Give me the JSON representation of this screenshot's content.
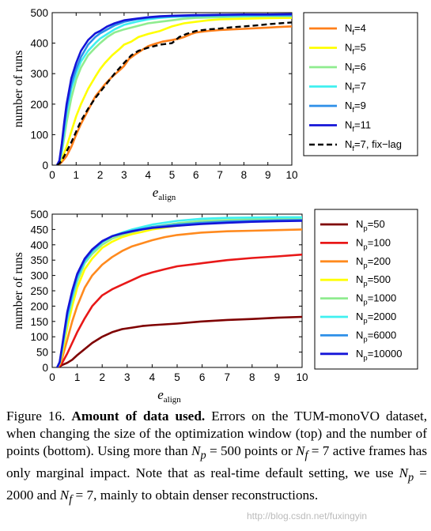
{
  "chart_data": [
    {
      "type": "line",
      "ylabel": "number of runs",
      "xlabel_main": "e",
      "xlabel_sub": "align",
      "xlim": [
        0,
        10
      ],
      "ylim": [
        0,
        500
      ],
      "xticks": [
        0,
        1,
        2,
        3,
        4,
        5,
        6,
        7,
        8,
        9,
        10
      ],
      "yticks": [
        0,
        100,
        200,
        300,
        400,
        500
      ],
      "legend_position": "right",
      "series": [
        {
          "label_main": "N",
          "label_sub": "f",
          "label_rest": "=4",
          "color": "#ff7f1a",
          "dashed": false,
          "x": [
            0.2,
            0.3,
            0.4,
            0.5,
            0.6,
            0.8,
            1.0,
            1.2,
            1.5,
            1.8,
            2.0,
            2.2,
            2.5,
            2.8,
            3.0,
            3.2,
            3.5,
            3.8,
            4.0,
            4.3,
            4.6,
            5.0,
            5.3,
            5.5,
            5.8,
            6.0,
            6.5,
            7.0,
            7.5,
            8.0,
            8.5,
            9.0,
            9.5,
            10.0
          ],
          "y": [
            0,
            3,
            10,
            20,
            30,
            60,
            100,
            135,
            180,
            225,
            245,
            265,
            290,
            310,
            325,
            348,
            365,
            380,
            390,
            398,
            405,
            410,
            415,
            420,
            430,
            435,
            440,
            443,
            445,
            447,
            449,
            451,
            453,
            455
          ]
        },
        {
          "label_main": "N",
          "label_sub": "f",
          "label_rest": "=5",
          "color": "#ffff00",
          "dashed": false,
          "x": [
            0.2,
            0.3,
            0.4,
            0.5,
            0.6,
            0.8,
            1.0,
            1.2,
            1.5,
            1.8,
            2.0,
            2.2,
            2.5,
            2.8,
            3.0,
            3.3,
            3.6,
            4.0,
            4.5,
            5.0,
            5.5,
            6.0,
            6.5,
            7.0,
            8.0,
            9.0,
            10.0
          ],
          "y": [
            0,
            5,
            20,
            40,
            60,
            110,
            160,
            200,
            250,
            290,
            315,
            335,
            360,
            380,
            395,
            405,
            420,
            430,
            440,
            455,
            465,
            470,
            475,
            478,
            480,
            482,
            483
          ]
        },
        {
          "label_main": "N",
          "label_sub": "f",
          "label_rest": "=6",
          "color": "#8fec8f",
          "dashed": false,
          "x": [
            0.2,
            0.3,
            0.4,
            0.5,
            0.6,
            0.8,
            1.0,
            1.2,
            1.5,
            1.8,
            2.0,
            2.3,
            2.6,
            3.0,
            3.5,
            4.0,
            4.5,
            5.0,
            5.5,
            6.0,
            7.0,
            8.0,
            9.0,
            10.0
          ],
          "y": [
            0,
            8,
            40,
            90,
            140,
            220,
            280,
            320,
            360,
            385,
            400,
            420,
            435,
            445,
            455,
            465,
            470,
            475,
            480,
            483,
            485,
            487,
            488,
            488
          ]
        },
        {
          "label_main": "N",
          "label_sub": "f",
          "label_rest": "=7",
          "color": "#3ff0f0",
          "dashed": false,
          "x": [
            0.2,
            0.3,
            0.4,
            0.5,
            0.6,
            0.8,
            1.0,
            1.2,
            1.5,
            1.8,
            2.0,
            2.3,
            2.6,
            3.0,
            3.5,
            4.0,
            4.5,
            5.0,
            6.0,
            7.0,
            8.0,
            9.0,
            10.0
          ],
          "y": [
            0,
            10,
            50,
            110,
            170,
            250,
            300,
            340,
            375,
            400,
            415,
            430,
            445,
            460,
            470,
            478,
            483,
            486,
            489,
            490,
            490,
            491,
            491
          ]
        },
        {
          "label_main": "N",
          "label_sub": "f",
          "label_rest": "=9",
          "color": "#2d8fe8",
          "dashed": false,
          "x": [
            0.2,
            0.3,
            0.4,
            0.5,
            0.6,
            0.8,
            1.0,
            1.2,
            1.5,
            1.8,
            2.0,
            2.3,
            2.6,
            3.0,
            3.5,
            4.0,
            4.5,
            5.0,
            6.0,
            7.0,
            8.0,
            9.0,
            10.0
          ],
          "y": [
            0,
            12,
            60,
            125,
            185,
            265,
            315,
            355,
            395,
            420,
            432,
            445,
            458,
            470,
            478,
            483,
            486,
            488,
            490,
            491,
            492,
            492,
            492
          ]
        },
        {
          "label_main": "N",
          "label_sub": "f",
          "label_rest": "=11",
          "color": "#1414d8",
          "dashed": false,
          "x": [
            0.2,
            0.3,
            0.4,
            0.5,
            0.6,
            0.8,
            1.0,
            1.2,
            1.5,
            1.8,
            2.0,
            2.3,
            2.6,
            3.0,
            3.5,
            4.0,
            4.5,
            5.0,
            6.0,
            7.0,
            8.0,
            9.0,
            10.0
          ],
          "y": [
            0,
            15,
            70,
            140,
            200,
            285,
            335,
            375,
            410,
            432,
            440,
            455,
            465,
            475,
            480,
            485,
            488,
            490,
            492,
            493,
            494,
            494,
            495
          ]
        },
        {
          "label_main": "N",
          "label_sub": "f",
          "label_rest": "=7, fix−lag",
          "color": "#000000",
          "dashed": true,
          "x": [
            0.2,
            0.3,
            0.4,
            0.5,
            0.6,
            0.8,
            1.0,
            1.2,
            1.5,
            1.8,
            2.0,
            2.3,
            2.6,
            3.0,
            3.3,
            3.6,
            4.0,
            4.5,
            5.0,
            5.3,
            5.6,
            6.0,
            6.5,
            7.0,
            7.5,
            8.0,
            8.5,
            9.0,
            9.5,
            10.0
          ],
          "y": [
            0,
            5,
            15,
            30,
            45,
            75,
            110,
            145,
            185,
            220,
            240,
            270,
            300,
            335,
            360,
            375,
            385,
            395,
            400,
            420,
            430,
            440,
            445,
            448,
            452,
            455,
            458,
            462,
            465,
            468
          ]
        }
      ]
    },
    {
      "type": "line",
      "ylabel": "number of runs",
      "xlabel_main": "e",
      "xlabel_sub": "align",
      "xlim": [
        0,
        10
      ],
      "ylim": [
        0,
        500
      ],
      "xticks": [
        0,
        1,
        2,
        3,
        4,
        5,
        6,
        7,
        8,
        9,
        10
      ],
      "yticks": [
        0,
        50,
        100,
        150,
        200,
        250,
        300,
        350,
        400,
        450,
        500
      ],
      "legend_position": "right",
      "series": [
        {
          "label_main": "N",
          "label_sub": "p",
          "label_rest": "=50",
          "color": "#7f0000",
          "dashed": false,
          "x": [
            0.2,
            0.3,
            0.4,
            0.6,
            0.8,
            1.0,
            1.3,
            1.6,
            2.0,
            2.4,
            2.8,
            3.2,
            3.6,
            4.0,
            5.0,
            6.0,
            7.0,
            8.0,
            9.0,
            10.0
          ],
          "y": [
            0,
            3,
            8,
            15,
            25,
            40,
            60,
            80,
            100,
            115,
            125,
            130,
            135,
            138,
            143,
            150,
            155,
            158,
            162,
            165
          ]
        },
        {
          "label_main": "N",
          "label_sub": "p",
          "label_rest": "=100",
          "color": "#e81818",
          "dashed": false,
          "x": [
            0.2,
            0.3,
            0.4,
            0.6,
            0.8,
            1.0,
            1.3,
            1.6,
            2.0,
            2.4,
            2.8,
            3.2,
            3.6,
            4.0,
            4.5,
            5.0,
            6.0,
            7.0,
            8.0,
            9.0,
            10.0
          ],
          "y": [
            0,
            5,
            15,
            45,
            80,
            115,
            160,
            200,
            235,
            255,
            270,
            285,
            300,
            310,
            320,
            330,
            340,
            350,
            357,
            362,
            368
          ]
        },
        {
          "label_main": "N",
          "label_sub": "p",
          "label_rest": "=200",
          "color": "#ff8a1e",
          "dashed": false,
          "x": [
            0.2,
            0.3,
            0.4,
            0.6,
            0.8,
            1.0,
            1.3,
            1.6,
            2.0,
            2.4,
            2.8,
            3.2,
            3.6,
            4.0,
            4.5,
            5.0,
            6.0,
            7.0,
            8.0,
            9.0,
            10.0
          ],
          "y": [
            0,
            10,
            30,
            90,
            150,
            200,
            260,
            300,
            335,
            360,
            380,
            395,
            405,
            415,
            425,
            432,
            440,
            444,
            446,
            448,
            450
          ]
        },
        {
          "label_main": "N",
          "label_sub": "p",
          "label_rest": "=500",
          "color": "#ffff00",
          "dashed": false,
          "x": [
            0.2,
            0.3,
            0.4,
            0.6,
            0.8,
            1.0,
            1.3,
            1.6,
            2.0,
            2.4,
            2.8,
            3.2,
            3.6,
            4.0,
            5.0,
            6.0,
            7.0,
            8.0,
            9.0,
            10.0
          ],
          "y": [
            0,
            12,
            45,
            130,
            200,
            260,
            320,
            355,
            390,
            410,
            425,
            435,
            442,
            450,
            462,
            470,
            474,
            476,
            478,
            480
          ]
        },
        {
          "label_main": "N",
          "label_sub": "p",
          "label_rest": "=1000",
          "color": "#8fec8f",
          "dashed": false,
          "x": [
            0.2,
            0.3,
            0.4,
            0.6,
            0.8,
            1.0,
            1.3,
            1.6,
            2.0,
            2.4,
            2.8,
            3.2,
            3.6,
            4.0,
            5.0,
            6.0,
            7.0,
            8.0,
            9.0,
            10.0
          ],
          "y": [
            0,
            15,
            55,
            150,
            220,
            280,
            340,
            370,
            400,
            420,
            432,
            442,
            450,
            458,
            470,
            478,
            481,
            483,
            484,
            485
          ]
        },
        {
          "label_main": "N",
          "label_sub": "p",
          "label_rest": "=2000",
          "color": "#3ff0f0",
          "dashed": false,
          "x": [
            0.2,
            0.3,
            0.4,
            0.6,
            0.8,
            1.0,
            1.3,
            1.6,
            2.0,
            2.4,
            2.8,
            3.2,
            3.6,
            4.0,
            5.0,
            6.0,
            7.0,
            8.0,
            9.0,
            10.0
          ],
          "y": [
            0,
            16,
            60,
            160,
            230,
            290,
            345,
            378,
            408,
            428,
            440,
            450,
            458,
            466,
            478,
            485,
            488,
            489,
            490,
            490
          ]
        },
        {
          "label_main": "N",
          "label_sub": "p",
          "label_rest": "=6000",
          "color": "#2d8fe8",
          "dashed": false,
          "x": [
            0.2,
            0.3,
            0.4,
            0.6,
            0.8,
            1.0,
            1.3,
            1.6,
            2.0,
            2.4,
            2.8,
            3.2,
            3.6,
            4.0,
            5.0,
            6.0,
            7.0,
            8.0,
            9.0,
            10.0
          ],
          "y": [
            0,
            17,
            65,
            170,
            240,
            298,
            350,
            382,
            410,
            428,
            438,
            446,
            452,
            458,
            466,
            472,
            476,
            478,
            480,
            481
          ]
        },
        {
          "label_main": "N",
          "label_sub": "p",
          "label_rest": "=10000",
          "color": "#1414d8",
          "dashed": false,
          "x": [
            0.2,
            0.3,
            0.4,
            0.6,
            0.8,
            1.0,
            1.3,
            1.6,
            2.0,
            2.4,
            2.8,
            3.2,
            3.6,
            4.0,
            5.0,
            6.0,
            7.0,
            8.0,
            9.0,
            10.0
          ],
          "y": [
            0,
            18,
            70,
            180,
            250,
            305,
            355,
            385,
            412,
            428,
            437,
            444,
            450,
            455,
            462,
            468,
            472,
            475,
            477,
            478
          ]
        }
      ]
    }
  ],
  "caption": {
    "label": "Figure 16.",
    "bold": "Amount of data used.",
    "s1": "Errors on the TUM-monoVO dataset, when changing the size of the optimization window (top) and the number of points (bottom). Using more than",
    "np_sym": "N",
    "np_sub": "p",
    "s2": "= 500 points or",
    "nf_sym": "N",
    "nf_sub": "f",
    "s3": "= 7 active frames has only marginal impact. Note that as real-time default setting, we use",
    "s4": "= 2000 and",
    "s5": "= 7, mainly to obtain denser reconstructions."
  },
  "watermark": "http://blog.csdn.net/fuxingyin"
}
